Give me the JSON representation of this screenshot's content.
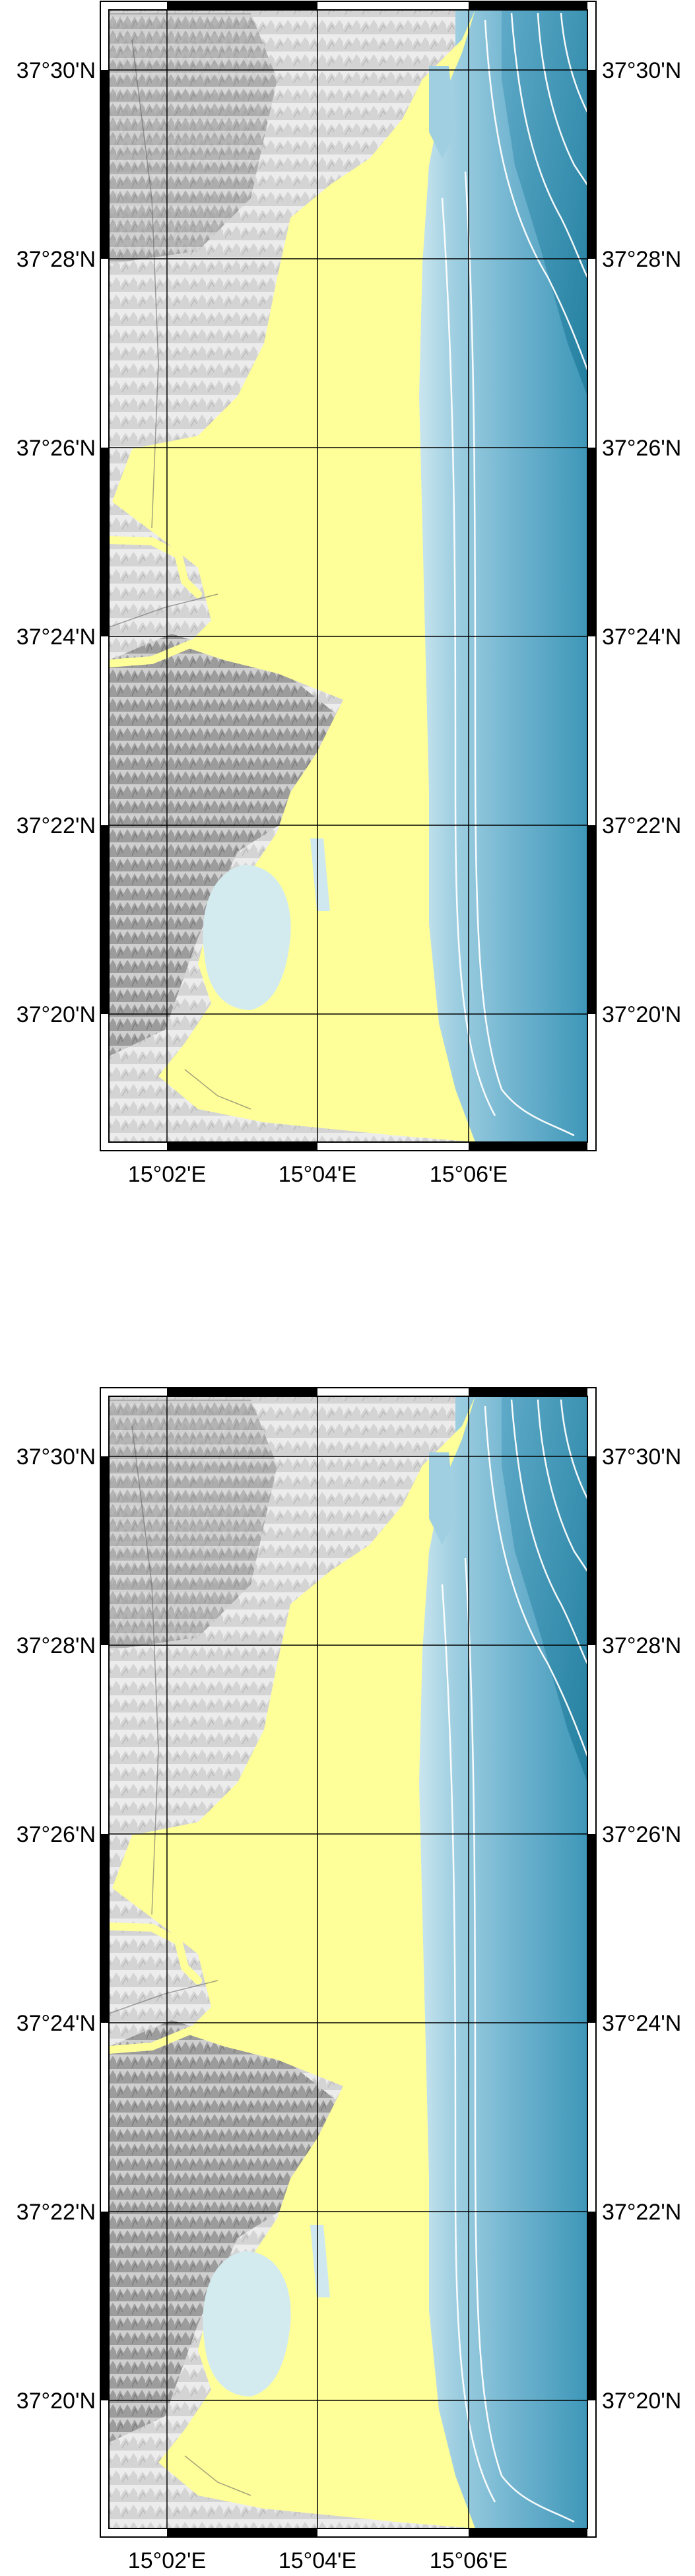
{
  "maps": [
    {
      "id": "map-top",
      "lat_labels": [
        "37°30'N",
        "37°28'N",
        "37°26'N",
        "37°24'N",
        "37°22'N",
        "37°20'N"
      ],
      "lon_labels": [
        "15°02'E",
        "15°04'E",
        "15°06'E"
      ]
    },
    {
      "id": "map-bottom",
      "lat_labels": [
        "37°30'N",
        "37°28'N",
        "37°26'N",
        "37°24'N",
        "37°22'N",
        "37°20'N"
      ],
      "lon_labels": [
        "15°02'E",
        "15°04'E",
        "15°06'E"
      ]
    }
  ],
  "colors": {
    "land": "#ffff99",
    "hillshade_light": "#f2f2f2",
    "hillshade_dark": "#9a9a9a",
    "sea_shallow": "#c9e4ee",
    "sea_mid": "#7fbcd6",
    "sea_deep": "#2b8aa8",
    "lagoon": "#d3ebef",
    "contour": "#ffffff",
    "grid": "#000000"
  }
}
